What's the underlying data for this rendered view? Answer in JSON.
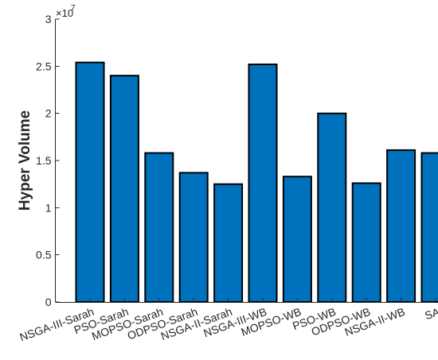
{
  "chart_data": {
    "type": "bar",
    "categories": [
      "NSGA-III-Sarah",
      "PSO-Sarah",
      "MOPSO-Sarah",
      "ODPSO-Sarah",
      "NSGA-II-Sarah",
      "NSGA-III-WB",
      "MOPSO-WB",
      "PSO-WB",
      "ODPSO-WB",
      "NSGA-II-WB",
      "SA"
    ],
    "values": [
      25400000,
      24000000,
      15800000,
      13700000,
      12500000,
      25200000,
      13300000,
      20000000,
      12600000,
      16100000,
      15800000
    ],
    "title": "",
    "xlabel": "",
    "ylabel": "Hyper Volume",
    "ylim": [
      0,
      30000000
    ],
    "yticks": [
      0,
      0.5,
      1,
      1.5,
      2,
      2.5,
      3
    ],
    "ytick_labels": [
      "0",
      "0.5",
      "1",
      "1.5",
      "2",
      "2.5",
      "3"
    ],
    "y_exponent_base": "×10",
    "y_exponent_power": "7",
    "bar_color": "#0072bd",
    "grid": false
  }
}
